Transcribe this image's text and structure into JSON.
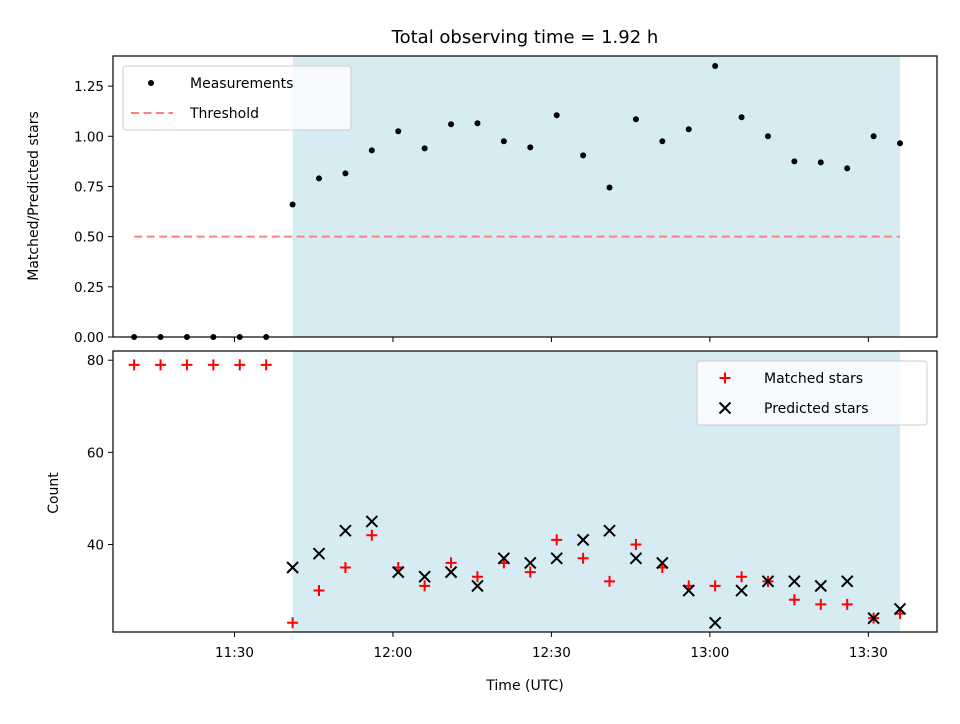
{
  "chart_data": [
    {
      "type": "scatter",
      "title": "Total observing time = 1.92 h",
      "xlabel": "",
      "ylabel": "Matched/Predicted stars",
      "xlim": [
        "11:07",
        "13:43"
      ],
      "ylim": [
        0,
        1.4
      ],
      "x_ticks": [
        "11:30",
        "12:00",
        "12:30",
        "13:00",
        "13:30"
      ],
      "x_ticklabels_shown": false,
      "y_ticks": [
        0.0,
        0.25,
        0.5,
        0.75,
        1.0,
        1.25
      ],
      "y_tick_labels": [
        "0.00",
        "0.25",
        "0.50",
        "0.75",
        "1.00",
        "1.25"
      ],
      "grid": false,
      "legend_position": "top-left",
      "shaded_span": {
        "from": "11:41",
        "to": "13:36",
        "color": "#add8e6"
      },
      "series": [
        {
          "name": "Measurements",
          "kind": "scatter",
          "marker": "dot",
          "color": "#000000",
          "x": [
            "11:11",
            "11:16",
            "11:21",
            "11:26",
            "11:31",
            "11:36",
            "11:41",
            "11:46",
            "11:51",
            "11:56",
            "12:01",
            "12:06",
            "12:11",
            "12:16",
            "12:21",
            "12:26",
            "12:31",
            "12:36",
            "12:41",
            "12:46",
            "12:51",
            "12:56",
            "13:01",
            "13:06",
            "13:11",
            "13:16",
            "13:21",
            "13:26",
            "13:31",
            "13:36"
          ],
          "y": [
            0,
            0,
            0,
            0,
            0,
            0,
            0.66,
            0.79,
            0.815,
            0.93,
            1.025,
            0.94,
            1.06,
            1.065,
            0.975,
            0.945,
            1.105,
            0.905,
            0.745,
            1.085,
            0.975,
            1.035,
            1.35,
            1.095,
            1.0,
            0.875,
            0.87,
            0.84,
            1.0,
            0.965
          ]
        },
        {
          "name": "Threshold",
          "kind": "line",
          "style": "dashed",
          "color": "#ff7f7f",
          "x": [
            "11:11",
            "13:36"
          ],
          "y": [
            0.5,
            0.5
          ]
        }
      ]
    },
    {
      "type": "scatter",
      "title": "",
      "xlabel": "Time (UTC)",
      "ylabel": "Count",
      "xlim": [
        "11:07",
        "13:43"
      ],
      "ylim": [
        21,
        82
      ],
      "x_ticks": [
        "11:30",
        "12:00",
        "12:30",
        "13:00",
        "13:30"
      ],
      "x_tick_labels": [
        "11:30",
        "12:00",
        "12:30",
        "13:00",
        "13:30"
      ],
      "y_ticks": [
        40,
        60,
        80
      ],
      "y_tick_labels": [
        "40",
        "60",
        "80"
      ],
      "grid": false,
      "legend_position": "top-right",
      "shaded_span": {
        "from": "11:41",
        "to": "13:36",
        "color": "#add8e6"
      },
      "series": [
        {
          "name": "Matched stars",
          "kind": "scatter",
          "marker": "plus",
          "color": "#ff0000",
          "x": [
            "11:11",
            "11:16",
            "11:21",
            "11:26",
            "11:31",
            "11:36",
            "11:41",
            "11:46",
            "11:51",
            "11:56",
            "12:01",
            "12:06",
            "12:11",
            "12:16",
            "12:21",
            "12:26",
            "12:31",
            "12:36",
            "12:41",
            "12:46",
            "12:51",
            "12:56",
            "13:01",
            "13:06",
            "13:11",
            "13:16",
            "13:21",
            "13:26",
            "13:31",
            "13:36"
          ],
          "y": [
            79,
            79,
            79,
            79,
            79,
            79,
            23,
            30,
            35,
            42,
            35,
            31,
            36,
            33,
            36,
            34,
            41,
            37,
            32,
            40,
            35,
            31,
            31,
            33,
            32,
            28,
            27,
            27,
            24,
            25
          ]
        },
        {
          "name": "Predicted stars",
          "kind": "scatter",
          "marker": "x",
          "color": "#000000",
          "x": [
            "11:41",
            "11:46",
            "11:51",
            "11:56",
            "12:01",
            "12:06",
            "12:11",
            "12:16",
            "12:21",
            "12:26",
            "12:31",
            "12:36",
            "12:41",
            "12:46",
            "12:51",
            "12:56",
            "13:01",
            "13:06",
            "13:11",
            "13:16",
            "13:21",
            "13:26",
            "13:31",
            "13:36"
          ],
          "y": [
            35,
            38,
            43,
            45,
            34,
            33,
            34,
            31,
            37,
            36,
            37,
            41,
            43,
            37,
            36,
            30,
            23,
            30,
            32,
            32,
            31,
            32,
            24,
            26
          ]
        }
      ]
    }
  ]
}
